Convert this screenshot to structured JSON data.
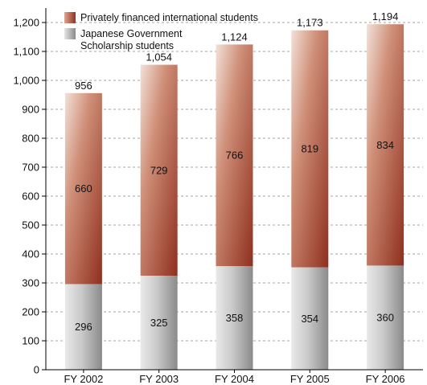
{
  "chart_data": {
    "type": "bar",
    "stacked": true,
    "categories": [
      "FY 2002",
      "FY 2003",
      "FY 2004",
      "FY 2005",
      "FY 2006"
    ],
    "series": [
      {
        "name": "Japanese Government Scholarship students",
        "values": [
          296,
          325,
          358,
          354,
          360
        ],
        "color": "#9a9a9a"
      },
      {
        "name": "Privately financed international students",
        "values": [
          660,
          729,
          766,
          819,
          834
        ],
        "color": "#9c3a2a"
      }
    ],
    "totals": [
      "956",
      "1,054",
      "1,124",
      "1,173",
      "1,194"
    ],
    "value_labels": [
      [
        "296",
        "325",
        "358",
        "354",
        "360"
      ],
      [
        "660",
        "729",
        "766",
        "819",
        "834"
      ]
    ],
    "ylim": [
      0,
      1250
    ],
    "yticks": [
      0,
      100,
      200,
      300,
      400,
      500,
      600,
      700,
      800,
      900,
      1000,
      1100,
      1200
    ],
    "ytick_labels": [
      "0",
      "100",
      "200",
      "300",
      "400",
      "500",
      "600",
      "700",
      "800",
      "900",
      "1,000",
      "1,100",
      "1,200"
    ],
    "grid": "dashed horizontal",
    "legend": {
      "placement": "top-left",
      "entries": [
        {
          "label_lines": [
            "Privately financed international students"
          ],
          "series": 1
        },
        {
          "label_lines": [
            "Japanese Government",
            "Scholarship students"
          ],
          "series": 0
        }
      ]
    }
  }
}
